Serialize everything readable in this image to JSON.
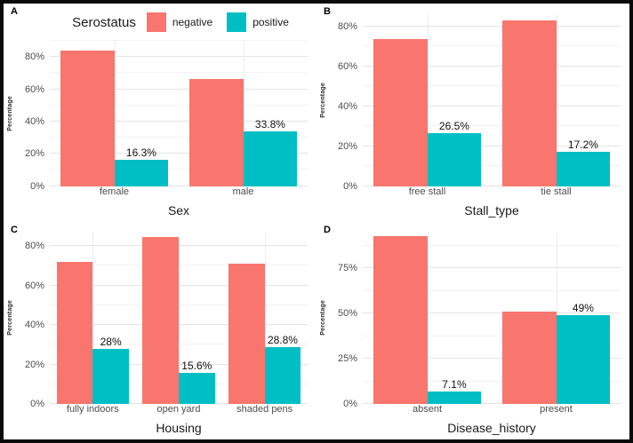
{
  "legend": {
    "title": "Serostatus",
    "items": [
      {
        "label": "negative",
        "color": "#F8766D"
      },
      {
        "label": "positive",
        "color": "#00BFC4"
      }
    ]
  },
  "colors": {
    "negative": "#F8766D",
    "positive": "#00BFC4",
    "grid_major": "#e4e4e4",
    "grid_minor": "#f2f2f2"
  },
  "chart_data": [
    {
      "panel": "A",
      "type": "bar",
      "xlabel": "Sex",
      "ylabel": "Percentage",
      "categories": [
        "female",
        "male"
      ],
      "series": [
        {
          "name": "negative",
          "values": [
            83.7,
            66.2
          ],
          "labels": [
            null,
            null
          ]
        },
        {
          "name": "positive",
          "values": [
            16.3,
            33.8
          ],
          "labels": [
            "16.3%",
            "33.8%"
          ]
        }
      ],
      "yticks": [
        0,
        20,
        40,
        60,
        80
      ],
      "ytick_labels": [
        "0%",
        "20%",
        "40%",
        "60%",
        "80%"
      ],
      "ylim": [
        0,
        90
      ],
      "grid": true,
      "legend_position": "top"
    },
    {
      "panel": "B",
      "type": "bar",
      "xlabel": "Stall_type",
      "ylabel": "Percentage",
      "categories": [
        "free stall",
        "tie stall"
      ],
      "series": [
        {
          "name": "negative",
          "values": [
            73.5,
            82.8
          ],
          "labels": [
            null,
            null
          ]
        },
        {
          "name": "positive",
          "values": [
            26.5,
            17.2
          ],
          "labels": [
            "26.5%",
            "17.2%"
          ]
        }
      ],
      "yticks": [
        0,
        20,
        40,
        60,
        80
      ],
      "ytick_labels": [
        "0%",
        "20%",
        "40%",
        "60%",
        "80%"
      ],
      "ylim": [
        0,
        86
      ],
      "grid": true,
      "legend_position": "none"
    },
    {
      "panel": "C",
      "type": "bar",
      "xlabel": "Housing",
      "ylabel": "Percentage",
      "categories": [
        "fully indoors",
        "open yard",
        "shaded pens"
      ],
      "series": [
        {
          "name": "negative",
          "values": [
            72.0,
            84.4,
            71.2
          ],
          "labels": [
            null,
            null,
            null
          ]
        },
        {
          "name": "positive",
          "values": [
            28.0,
            15.6,
            28.8
          ],
          "labels": [
            "28%",
            "15.6%",
            "28.8%"
          ]
        }
      ],
      "yticks": [
        0,
        20,
        40,
        60,
        80
      ],
      "ytick_labels": [
        "0%",
        "20%",
        "40%",
        "60%",
        "80%"
      ],
      "ylim": [
        0,
        87
      ],
      "grid": true,
      "legend_position": "none"
    },
    {
      "panel": "D",
      "type": "bar",
      "xlabel": "Disease_history",
      "ylabel": "Percentage",
      "categories": [
        "absent",
        "present"
      ],
      "series": [
        {
          "name": "negative",
          "values": [
            92.9,
            51.0
          ],
          "labels": [
            null,
            null
          ]
        },
        {
          "name": "positive",
          "values": [
            7.1,
            49.0
          ],
          "labels": [
            "7.1%",
            "49%"
          ]
        }
      ],
      "yticks": [
        0,
        25,
        50,
        75
      ],
      "ytick_labels": [
        "0%",
        "25%",
        "50%",
        "75%"
      ],
      "ylim": [
        0,
        95
      ],
      "grid": true,
      "legend_position": "none"
    }
  ]
}
